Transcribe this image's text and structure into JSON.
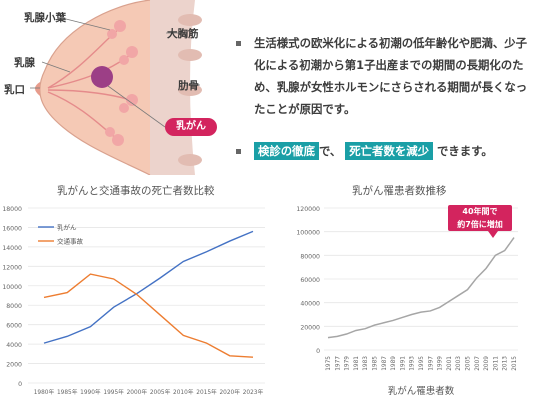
{
  "anatomy": {
    "labels": {
      "lobule": "乳腺小葉",
      "pectoralis": "大胸筋",
      "gland": "乳腺",
      "rib": "肋骨",
      "nipple": "乳口",
      "cancer": "乳がん"
    },
    "colors": {
      "skin": "#f5c9b5",
      "muscle": "#ecd3cc",
      "tumor": "#9c3f86",
      "accent": "#d3245e"
    }
  },
  "bullets": {
    "item1": "生活様式の欧米化による初潮の低年齢化や肥満、少子化による初潮から第1子出産までの期間の長期化のため、乳腺が女性ホルモンにさらされる期間が長くなったことが原因です。",
    "item2_hl1": "検診の徹底",
    "item2_mid": "で、",
    "item2_hl2": "死亡者数を減少",
    "item2_end": "できます。",
    "highlight_color": "#1a9fa6"
  },
  "chart_data": [
    {
      "type": "line",
      "title": "乳がんと交通事故の死亡者数比較",
      "x": [
        "1980年",
        "1985年",
        "1990年",
        "1995年",
        "2000年",
        "2005年",
        "2010年",
        "2015年",
        "2020年",
        "2023年"
      ],
      "series": [
        {
          "name": "乳がん",
          "color": "#4472c4",
          "values": [
            4100,
            4800,
            5800,
            7800,
            9200,
            10800,
            12500,
            13500,
            14600,
            15600
          ]
        },
        {
          "name": "交通事故",
          "color": "#ed7d31",
          "values": [
            8800,
            9300,
            11200,
            10700,
            9100,
            7000,
            4900,
            4100,
            2800,
            2650
          ]
        }
      ],
      "ylim": [
        0,
        18000
      ],
      "yticks": [
        "0",
        "2000",
        "4000",
        "6000",
        "8000",
        "10000",
        "12000",
        "14000",
        "16000",
        "18000"
      ],
      "legend_position": "top-left"
    },
    {
      "type": "line",
      "title": "乳がん罹患者数推移",
      "xlabel": "乳がん罹患者数",
      "x": [
        "1975",
        "1977",
        "1979",
        "1981",
        "1983",
        "1985",
        "1987",
        "1989",
        "1991",
        "1993",
        "1995",
        "1997",
        "1999",
        "2001",
        "2003",
        "2005",
        "2007",
        "2009",
        "2011",
        "2013",
        "2015"
      ],
      "series": [
        {
          "color": "#a6a6a6",
          "values": [
            10500,
            11500,
            13500,
            16500,
            18000,
            21000,
            23000,
            25000,
            27500,
            30000,
            32000,
            33000,
            36000,
            41000,
            46000,
            51000,
            61000,
            69000,
            80000,
            84000,
            95000
          ]
        }
      ],
      "ylim": [
        0,
        120000
      ],
      "yticks": [
        "0",
        "20000",
        "40000",
        "60000",
        "80000",
        "100000",
        "120000"
      ],
      "annotation": "40年間で 約7倍に増加"
    }
  ]
}
